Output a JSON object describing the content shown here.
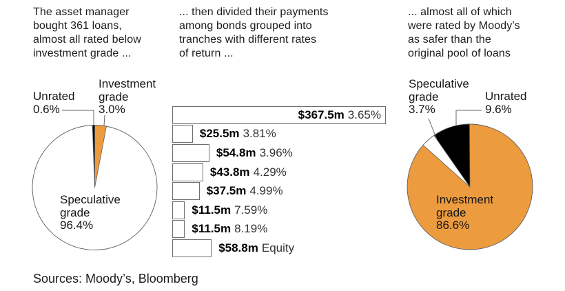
{
  "headers": {
    "panel1": "The asset manager\nbought 361 loans,\nalmost all rated below\ninvestment grade ...",
    "panel2": "... then divided their payments\namong bonds grouped into\ntranches with different rates\nof return ...",
    "panel3": "... almost all of which\nwere rated by Moody’s\nas safer than the\noriginal pool of loans"
  },
  "footer": "Sources: Moody’s, Bloomberg",
  "colors": {
    "orange": "#EC9B3E",
    "black": "#000000",
    "white": "#ffffff",
    "pie_stroke": "#5f5f5f",
    "bar_border": "#6e6e6e",
    "leader_line": "#666666"
  },
  "left_pie_labels": {
    "callout_unrated": "Unrated\n0.6%",
    "callout_investment_grade": "Investment\ngrade\n3.0%",
    "inner_speculative_grade": "Speculative\ngrade\n96.4%"
  },
  "right_pie_labels": {
    "callout_speculative_grade": "Speculative\ngrade\n3.7%",
    "callout_unrated": "Unrated\n9.6%",
    "inner_investment_grade": "Investment\ngrade\n86.6%"
  },
  "chart_data": [
    {
      "type": "pie",
      "name": "loans-by-rating",
      "title": "The asset manager bought 361 loans, almost all rated below investment grade ...",
      "slices": [
        {
          "label": "Investment grade",
          "value": 3.0,
          "display": "3.0%",
          "color": "orange"
        },
        {
          "label": "Speculative grade",
          "value": 96.4,
          "display": "96.4%",
          "color": "white"
        },
        {
          "label": "Unrated",
          "value": 0.6,
          "display": "0.6%",
          "color": "black"
        }
      ],
      "start_angle_deg": -90,
      "direction": "clockwise"
    },
    {
      "type": "bar",
      "name": "tranche-payments",
      "title": "... then divided their payments among bonds grouped into tranches with different rates of return ...",
      "orientation": "horizontal",
      "max_value_millions": 367.5,
      "bars": [
        {
          "amount_label": "$367.5m",
          "rate_label": "3.65%",
          "amount_millions": 367.5,
          "rate_percent": 3.65
        },
        {
          "amount_label": "$25.5m",
          "rate_label": "3.81%",
          "amount_millions": 25.5,
          "rate_percent": 3.81
        },
        {
          "amount_label": "$54.8m",
          "rate_label": "3.96%",
          "amount_millions": 54.8,
          "rate_percent": 3.96
        },
        {
          "amount_label": "$43.8m",
          "rate_label": "4.29%",
          "amount_millions": 43.8,
          "rate_percent": 4.29
        },
        {
          "amount_label": "$37.5m",
          "rate_label": "4.99%",
          "amount_millions": 37.5,
          "rate_percent": 4.99
        },
        {
          "amount_label": "$11.5m",
          "rate_label": "7.59%",
          "amount_millions": 11.5,
          "rate_percent": 7.59
        },
        {
          "amount_label": "$11.5m",
          "rate_label": "8.19%",
          "amount_millions": 11.5,
          "rate_percent": 8.19
        },
        {
          "amount_label": "$58.8m",
          "rate_label": "Equity",
          "amount_millions": 58.8,
          "rate_percent": null
        }
      ]
    },
    {
      "type": "pie",
      "name": "bonds-by-moodys-rating",
      "title": "... almost all of which were rated by Moody's as safer than the original pool of loans",
      "slices": [
        {
          "label": "Investment grade",
          "value": 86.6,
          "display": "86.6%",
          "color": "orange"
        },
        {
          "label": "Speculative grade",
          "value": 3.7,
          "display": "3.7%",
          "color": "white"
        },
        {
          "label": "Unrated",
          "value": 9.6,
          "display": "9.6%",
          "color": "black"
        }
      ],
      "start_angle_deg": -90,
      "direction": "clockwise"
    }
  ]
}
